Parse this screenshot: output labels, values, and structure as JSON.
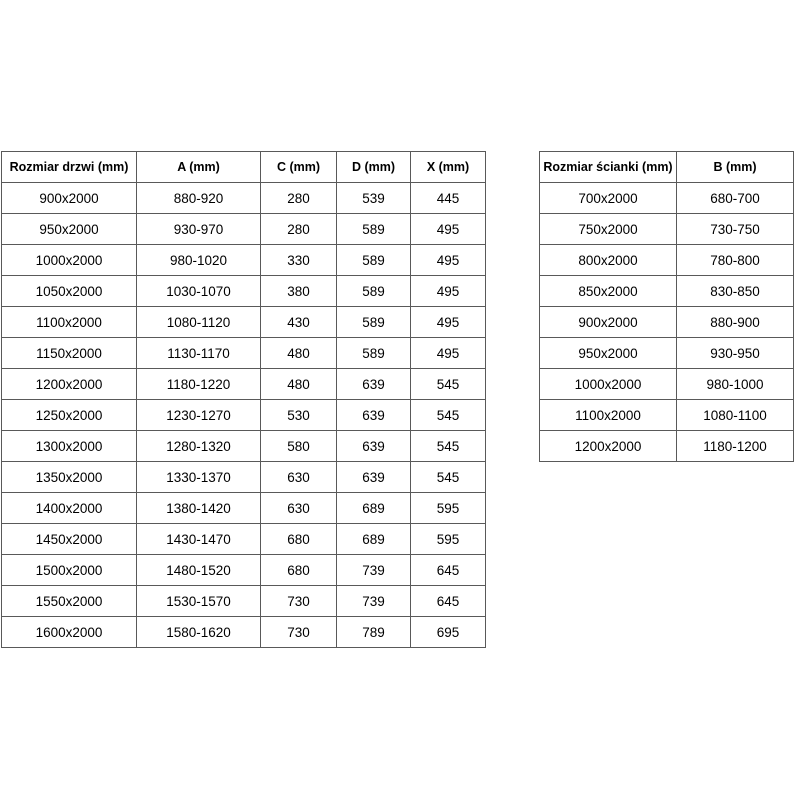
{
  "colors": {
    "border": "#595959",
    "text": "#000000",
    "background": "#ffffff"
  },
  "tables": {
    "doors": {
      "columns": [
        "Rozmiar drzwi (mm)",
        "A (mm)",
        "C (mm)",
        "D (mm)",
        "X (mm)"
      ],
      "rows": [
        [
          "900x2000",
          "880-920",
          "280",
          "539",
          "445"
        ],
        [
          "950x2000",
          "930-970",
          "280",
          "589",
          "495"
        ],
        [
          "1000x2000",
          "980-1020",
          "330",
          "589",
          "495"
        ],
        [
          "1050x2000",
          "1030-1070",
          "380",
          "589",
          "495"
        ],
        [
          "1100x2000",
          "1080-1120",
          "430",
          "589",
          "495"
        ],
        [
          "1150x2000",
          "1130-1170",
          "480",
          "589",
          "495"
        ],
        [
          "1200x2000",
          "1180-1220",
          "480",
          "639",
          "545"
        ],
        [
          "1250x2000",
          "1230-1270",
          "530",
          "639",
          "545"
        ],
        [
          "1300x2000",
          "1280-1320",
          "580",
          "639",
          "545"
        ],
        [
          "1350x2000",
          "1330-1370",
          "630",
          "639",
          "545"
        ],
        [
          "1400x2000",
          "1380-1420",
          "630",
          "689",
          "595"
        ],
        [
          "1450x2000",
          "1430-1470",
          "680",
          "689",
          "595"
        ],
        [
          "1500x2000",
          "1480-1520",
          "680",
          "739",
          "645"
        ],
        [
          "1550x2000",
          "1530-1570",
          "730",
          "739",
          "645"
        ],
        [
          "1600x2000",
          "1580-1620",
          "730",
          "789",
          "695"
        ]
      ]
    },
    "walls": {
      "columns": [
        "Rozmiar ścianki (mm)",
        "B (mm)"
      ],
      "rows": [
        [
          "700x2000",
          "680-700"
        ],
        [
          "750x2000",
          "730-750"
        ],
        [
          "800x2000",
          "780-800"
        ],
        [
          "850x2000",
          "830-850"
        ],
        [
          "900x2000",
          "880-900"
        ],
        [
          "950x2000",
          "930-950"
        ],
        [
          "1000x2000",
          "980-1000"
        ],
        [
          "1100x2000",
          "1080-1100"
        ],
        [
          "1200x2000",
          "1180-1200"
        ]
      ]
    }
  }
}
